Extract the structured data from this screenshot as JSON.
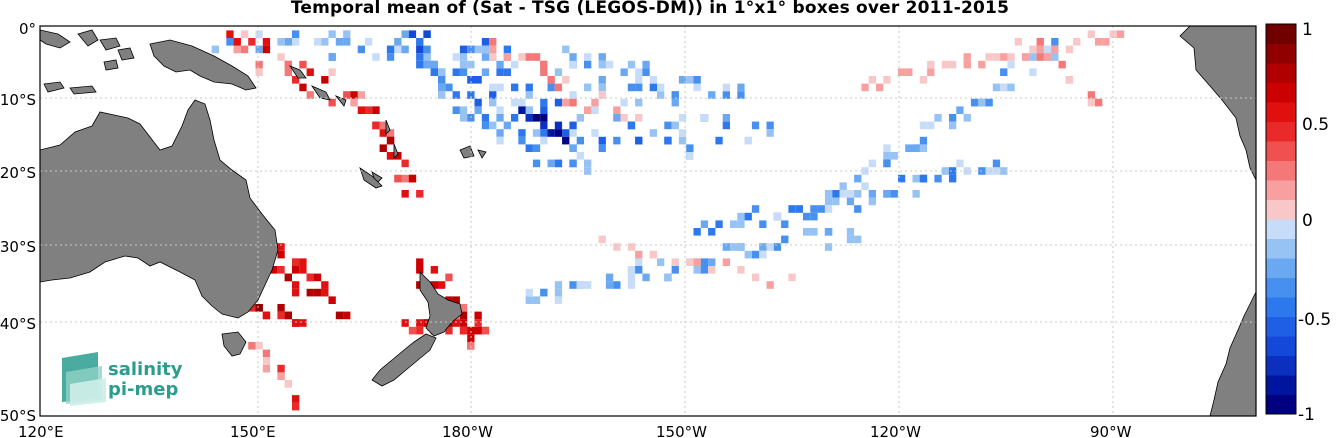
{
  "title": "Temporal mean of (Sat - TSG (LEGOS-DM)) in 1°x1° boxes over 2011-2015",
  "lon_ticks": [
    "120°E",
    "150°E",
    "180°W",
    "150°W",
    "120°W",
    "90°W"
  ],
  "lat_ticks": [
    "0°",
    "10°S",
    "20°S",
    "30°S",
    "40°S",
    "50°S"
  ],
  "colorbar": {
    "ticks": [
      "1",
      "0.5",
      "0",
      "-0.5",
      "-1"
    ],
    "min": -1,
    "max": 1,
    "levels": 20,
    "colors_negative": [
      "#000080",
      "#00159e",
      "#0b30c0",
      "#1448d8",
      "#1f5fe6",
      "#2e78ee",
      "#4790f0",
      "#6aa8f2",
      "#96c2f4",
      "#c6dcf8"
    ],
    "colors_positive": [
      "#f8c8c8",
      "#f8a0a0",
      "#f47878",
      "#f05050",
      "#ea2a2a",
      "#e01010",
      "#cc0000",
      "#b00000",
      "#900000",
      "#700000"
    ]
  },
  "map": {
    "extent": {
      "lon_min": 120,
      "lon_max": 265,
      "lat_min": -50,
      "lat_max": 0
    },
    "land_color": "#808080",
    "grid": true
  },
  "logo": {
    "line1": "salinity",
    "line2": "pi-mep"
  }
}
